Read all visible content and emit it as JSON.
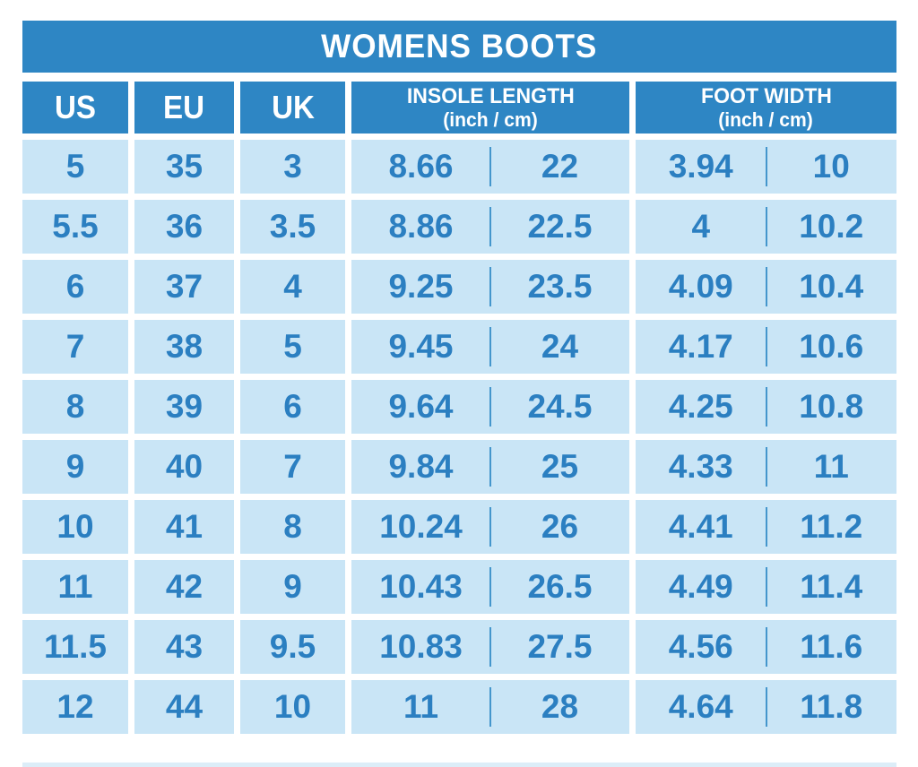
{
  "chart": {
    "title": "WOMENS BOOTS",
    "headers": {
      "us": "US",
      "eu": "EU",
      "uk": "UK",
      "insole_line1": "INSOLE LENGTH",
      "insole_line2": "(inch / cm)",
      "foot_line1": "FOOT WIDTH",
      "foot_line2": "(inch / cm)"
    },
    "rows": [
      {
        "us": "5",
        "eu": "35",
        "uk": "3",
        "insole_inch": "8.66",
        "insole_cm": "22",
        "foot_inch": "3.94",
        "foot_cm": "10"
      },
      {
        "us": "5.5",
        "eu": "36",
        "uk": "3.5",
        "insole_inch": "8.86",
        "insole_cm": "22.5",
        "foot_inch": "4",
        "foot_cm": "10.2"
      },
      {
        "us": "6",
        "eu": "37",
        "uk": "4",
        "insole_inch": "9.25",
        "insole_cm": "23.5",
        "foot_inch": "4.09",
        "foot_cm": "10.4"
      },
      {
        "us": "7",
        "eu": "38",
        "uk": "5",
        "insole_inch": "9.45",
        "insole_cm": "24",
        "foot_inch": "4.17",
        "foot_cm": "10.6"
      },
      {
        "us": "8",
        "eu": "39",
        "uk": "6",
        "insole_inch": "9.64",
        "insole_cm": "24.5",
        "foot_inch": "4.25",
        "foot_cm": "10.8"
      },
      {
        "us": "9",
        "eu": "40",
        "uk": "7",
        "insole_inch": "9.84",
        "insole_cm": "25",
        "foot_inch": "4.33",
        "foot_cm": "11"
      },
      {
        "us": "10",
        "eu": "41",
        "uk": "8",
        "insole_inch": "10.24",
        "insole_cm": "26",
        "foot_inch": "4.41",
        "foot_cm": "11.2"
      },
      {
        "us": "11",
        "eu": "42",
        "uk": "9",
        "insole_inch": "10.43",
        "insole_cm": "26.5",
        "foot_inch": "4.49",
        "foot_cm": "11.4"
      },
      {
        "us": "11.5",
        "eu": "43",
        "uk": "9.5",
        "insole_inch": "10.83",
        "insole_cm": "27.5",
        "foot_inch": "4.56",
        "foot_cm": "11.6"
      },
      {
        "us": "12",
        "eu": "44",
        "uk": "10",
        "insole_inch": "11",
        "insole_cm": "28",
        "foot_inch": "4.64",
        "foot_cm": "11.8"
      }
    ]
  },
  "chart_data": {
    "type": "table",
    "title": "WOMENS BOOTS",
    "columns": [
      "US",
      "EU",
      "UK",
      "INSOLE LENGTH inch",
      "INSOLE LENGTH cm",
      "FOOT WIDTH inch",
      "FOOT WIDTH cm"
    ],
    "rows": [
      [
        5,
        35,
        3,
        8.66,
        22,
        3.94,
        10
      ],
      [
        5.5,
        36,
        3.5,
        8.86,
        22.5,
        4,
        10.2
      ],
      [
        6,
        37,
        4,
        9.25,
        23.5,
        4.09,
        10.4
      ],
      [
        7,
        38,
        5,
        9.45,
        24,
        4.17,
        10.6
      ],
      [
        8,
        39,
        6,
        9.64,
        24.5,
        4.25,
        10.8
      ],
      [
        9,
        40,
        7,
        9.84,
        25,
        4.33,
        11
      ],
      [
        10,
        41,
        8,
        10.24,
        26,
        4.41,
        11.2
      ],
      [
        11,
        42,
        9,
        10.43,
        26.5,
        4.49,
        11.4
      ],
      [
        11.5,
        43,
        9.5,
        10.83,
        27.5,
        4.56,
        11.6
      ],
      [
        12,
        44,
        10,
        11,
        28,
        4.64,
        11.8
      ]
    ]
  },
  "colors": {
    "header_blue": "#2e86c4",
    "cell_light_blue": "#c9e5f6",
    "text_blue": "#2b7fc1",
    "divider_blue": "#4496cc",
    "background": "#ffffff"
  }
}
